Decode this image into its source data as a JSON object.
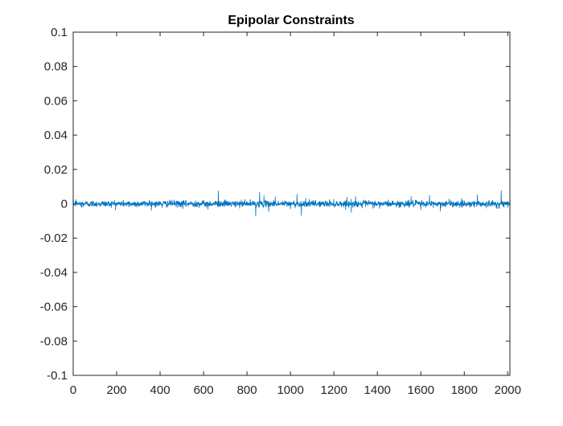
{
  "chart_data": {
    "type": "line",
    "title": "Epipolar Constraints",
    "xlabel": "",
    "ylabel": "",
    "xlim": [
      0,
      2010
    ],
    "ylim": [
      -0.1,
      0.1
    ],
    "xticks": [
      0,
      200,
      400,
      600,
      800,
      1000,
      1200,
      1400,
      1600,
      1800,
      2000
    ],
    "xtick_labels": [
      "0",
      "200",
      "400",
      "600",
      "800",
      "1000",
      "1200",
      "1400",
      "1600",
      "1800",
      "2000"
    ],
    "yticks": [
      0.1,
      0.08,
      0.06,
      0.04,
      0.02,
      0,
      -0.02,
      -0.04,
      -0.06,
      -0.08,
      -0.1
    ],
    "ytick_labels": [
      "0.1",
      "0.08",
      "0.06",
      "0.04",
      "0.02",
      "0",
      "-0.02",
      "-0.04",
      "-0.06",
      "-0.08",
      "-0.1"
    ],
    "grid": false,
    "box": true,
    "line_color": "#0072BD",
    "series": [
      {
        "x_start": 1,
        "x_end": 2010,
        "n_points": 2010,
        "noise_std": 0.0009,
        "spikes": [
          {
            "x": 12,
            "y": 0.0025
          },
          {
            "x": 40,
            "y": -0.0022
          },
          {
            "x": 190,
            "y": 0.002
          },
          {
            "x": 255,
            "y": -0.0018
          },
          {
            "x": 350,
            "y": 0.002
          },
          {
            "x": 410,
            "y": -0.0022
          },
          {
            "x": 455,
            "y": 0.0022
          },
          {
            "x": 505,
            "y": -0.0028
          },
          {
            "x": 520,
            "y": 0.0015
          },
          {
            "x": 565,
            "y": 0.0018
          },
          {
            "x": 620,
            "y": -0.0032
          },
          {
            "x": 668,
            "y": 0.0074
          },
          {
            "x": 700,
            "y": 0.0024
          },
          {
            "x": 745,
            "y": -0.002
          },
          {
            "x": 790,
            "y": 0.0025
          },
          {
            "x": 840,
            "y": -0.0072
          },
          {
            "x": 858,
            "y": 0.0068
          },
          {
            "x": 878,
            "y": 0.0048
          },
          {
            "x": 900,
            "y": -0.0045
          },
          {
            "x": 930,
            "y": 0.004
          },
          {
            "x": 1000,
            "y": -0.003
          },
          {
            "x": 1030,
            "y": 0.0055
          },
          {
            "x": 1050,
            "y": -0.0068
          },
          {
            "x": 1070,
            "y": 0.0032
          },
          {
            "x": 1180,
            "y": 0.0025
          },
          {
            "x": 1235,
            "y": -0.002
          },
          {
            "x": 1260,
            "y": 0.0038
          },
          {
            "x": 1280,
            "y": -0.005
          },
          {
            "x": 1300,
            "y": 0.0042
          },
          {
            "x": 1330,
            "y": -0.0025
          },
          {
            "x": 1360,
            "y": 0.002
          },
          {
            "x": 1410,
            "y": -0.0028
          },
          {
            "x": 1450,
            "y": 0.0022
          },
          {
            "x": 1500,
            "y": -0.0024
          },
          {
            "x": 1555,
            "y": 0.0042
          },
          {
            "x": 1600,
            "y": -0.0035
          },
          {
            "x": 1640,
            "y": 0.0048
          },
          {
            "x": 1690,
            "y": -0.0042
          },
          {
            "x": 1730,
            "y": 0.0028
          },
          {
            "x": 1780,
            "y": -0.0022
          },
          {
            "x": 1860,
            "y": 0.0052
          },
          {
            "x": 1900,
            "y": -0.0025
          },
          {
            "x": 1950,
            "y": -0.0028
          },
          {
            "x": 1970,
            "y": 0.0078
          },
          {
            "x": 2000,
            "y": -0.0022
          }
        ]
      }
    ]
  }
}
